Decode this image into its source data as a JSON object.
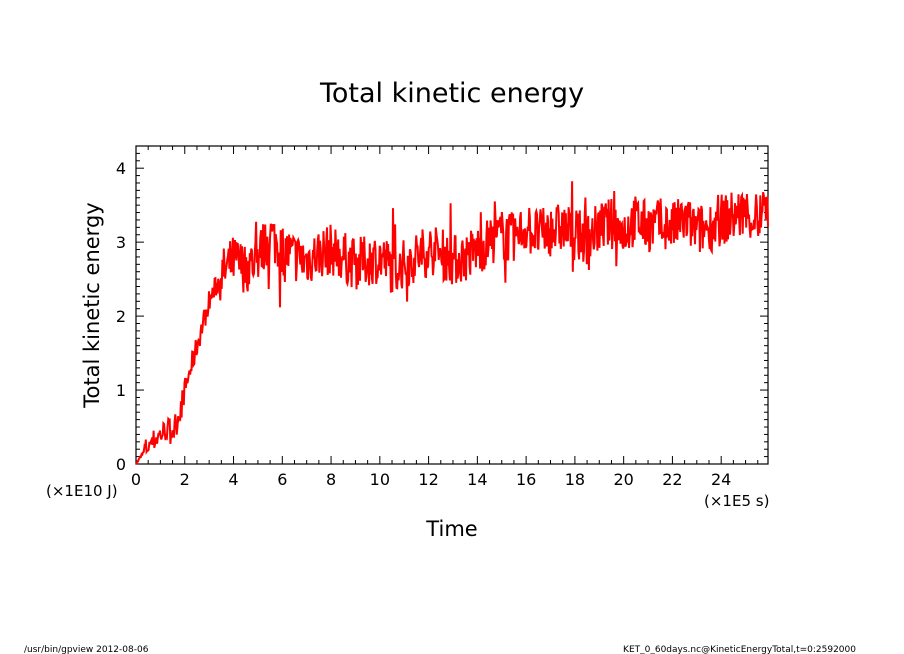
{
  "chart_data": {
    "type": "line",
    "title": "Total kinetic energy",
    "xlabel": "Time",
    "ylabel": "Total kinetic energy",
    "x_unit": "(×1E5 s)",
    "y_unit": "(×1E10 J)",
    "xlim": [
      0,
      25.92
    ],
    "ylim": [
      0,
      4.3
    ],
    "x_ticks": [
      0,
      2,
      4,
      6,
      8,
      10,
      12,
      14,
      16,
      18,
      20,
      22,
      24
    ],
    "y_ticks": [
      0,
      1,
      2,
      3,
      4
    ],
    "grid": false,
    "line_color": "#ff0000",
    "x": [
      0,
      0.5,
      1.0,
      1.3,
      1.6,
      2.0,
      2.5,
      3.0,
      3.5,
      4.0,
      4.5,
      5.0,
      5.5,
      6.0,
      6.5,
      7.0,
      7.5,
      8.0,
      8.5,
      9.0,
      9.5,
      10.0,
      10.5,
      11.0,
      11.5,
      12.0,
      12.5,
      13.0,
      13.5,
      14.0,
      14.5,
      15.0,
      15.5,
      16.0,
      16.5,
      17.0,
      17.5,
      18.0,
      18.5,
      19.0,
      19.5,
      20.0,
      20.5,
      21.0,
      21.5,
      22.0,
      22.5,
      23.0,
      23.5,
      24.0,
      24.5,
      25.0,
      25.5,
      25.92
    ],
    "y": [
      0.0,
      0.25,
      0.4,
      0.48,
      0.45,
      1.0,
      1.6,
      2.2,
      2.55,
      2.75,
      2.65,
      2.8,
      3.1,
      2.9,
      2.8,
      2.75,
      2.85,
      2.9,
      2.8,
      2.7,
      2.75,
      2.8,
      2.65,
      2.7,
      2.8,
      2.9,
      2.85,
      2.75,
      2.8,
      2.9,
      3.0,
      3.1,
      3.05,
      3.2,
      3.1,
      3.15,
      3.2,
      3.1,
      3.05,
      3.2,
      3.25,
      3.15,
      3.3,
      3.2,
      3.25,
      3.2,
      3.3,
      3.15,
      3.2,
      3.3,
      3.35,
      3.4,
      3.3,
      3.5
    ],
    "noise_amplitude": 0.35
  },
  "footer": {
    "left": "/usr/bin/gpview   2012-08-06",
    "right": "KET_0_60days.nc@KineticEnergyTotal,t=0:2592000"
  }
}
